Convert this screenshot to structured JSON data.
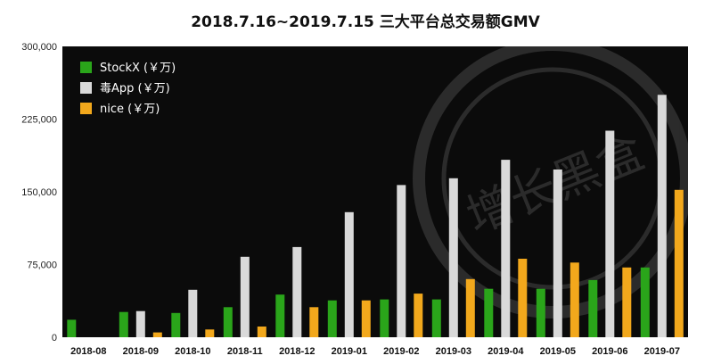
{
  "chart_data": {
    "type": "bar",
    "title": "2018.7.16~2019.7.15 三大平台总交易额GMV",
    "categories": [
      "2018-08",
      "2018-09",
      "2018-10",
      "2018-11",
      "2018-12",
      "2019-01",
      "2019-02",
      "2019-03",
      "2019-04",
      "2019-05",
      "2019-06",
      "2019-07"
    ],
    "ylim": [
      0,
      300000
    ],
    "yticks": [
      0,
      75000,
      150000,
      225000,
      300000
    ],
    "ytick_labels": [
      "0",
      "75,000",
      "150,000",
      "225,000",
      "300,000"
    ],
    "grid": false,
    "legend_position": "top-left",
    "series": [
      {
        "name": "StockX (￥万)",
        "color": "#2aa51a",
        "values": [
          18000,
          26000,
          25000,
          31000,
          44000,
          38000,
          39000,
          39000,
          50000,
          50000,
          59000,
          72000
        ]
      },
      {
        "name": "毒App (￥万)",
        "color": "#d9d9d9",
        "values": [
          0,
          27000,
          49000,
          83000,
          93000,
          129000,
          157000,
          164000,
          183000,
          173000,
          213000,
          250000
        ]
      },
      {
        "name": "nice (￥万)",
        "color": "#f2a81c",
        "values": [
          0,
          5000,
          8000,
          11000,
          31000,
          38000,
          45000,
          60000,
          81000,
          77000,
          72000,
          152000
        ]
      }
    ]
  },
  "watermark": {
    "text": "增长黑盒"
  }
}
